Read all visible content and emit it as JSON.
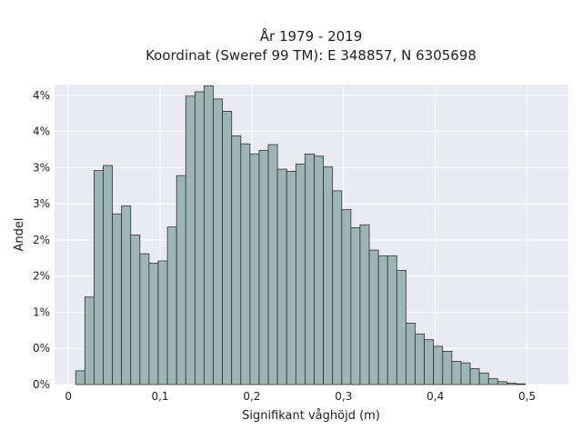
{
  "chart_data": {
    "type": "bar",
    "title": "År 1979 - 2019",
    "subtitle": "Koordinat (Sweref 99 TM): E 348857, N 6305698",
    "xlabel": "Signifikant våghöjd (m)",
    "ylabel": "Andel",
    "xlim": [
      -0.015,
      0.545
    ],
    "ylim": [
      0,
      0.0415
    ],
    "x_ticks": [
      0,
      0.1,
      0.2,
      0.3,
      0.4,
      0.5
    ],
    "x_tick_labels": [
      "0",
      "0,1",
      "0,2",
      "0,3",
      "0,4",
      "0,5"
    ],
    "y_ticks": [
      0,
      0.005,
      0.01,
      0.015,
      0.02,
      0.025,
      0.03,
      0.035,
      0.04
    ],
    "y_tick_labels": [
      "0%",
      "0%",
      "1%",
      "2%",
      "2%",
      "3%",
      "3%",
      "4%",
      "4%"
    ],
    "bin_width": 0.01,
    "bin_start": 0.008,
    "values": [
      0.0019,
      0.0121,
      0.0296,
      0.0303,
      0.0236,
      0.0247,
      0.0207,
      0.0181,
      0.0168,
      0.0171,
      0.0218,
      0.0289,
      0.0399,
      0.0405,
      0.0413,
      0.0395,
      0.0378,
      0.0344,
      0.0333,
      0.0319,
      0.0324,
      0.0332,
      0.0298,
      0.0295,
      0.0305,
      0.0319,
      0.0316,
      0.0301,
      0.0268,
      0.0242,
      0.0217,
      0.0221,
      0.0186,
      0.0178,
      0.0178,
      0.0158,
      0.0085,
      0.007,
      0.0062,
      0.0053,
      0.0046,
      0.0032,
      0.003,
      0.0022,
      0.0016,
      0.0008,
      0.0004,
      0.0002,
      0.0001
    ],
    "grid": true,
    "colors": {
      "bar_fill": "#9db5b3",
      "bar_edge": "#333333",
      "plot_background": "#eaeaf2",
      "grid": "#ffffff"
    }
  }
}
